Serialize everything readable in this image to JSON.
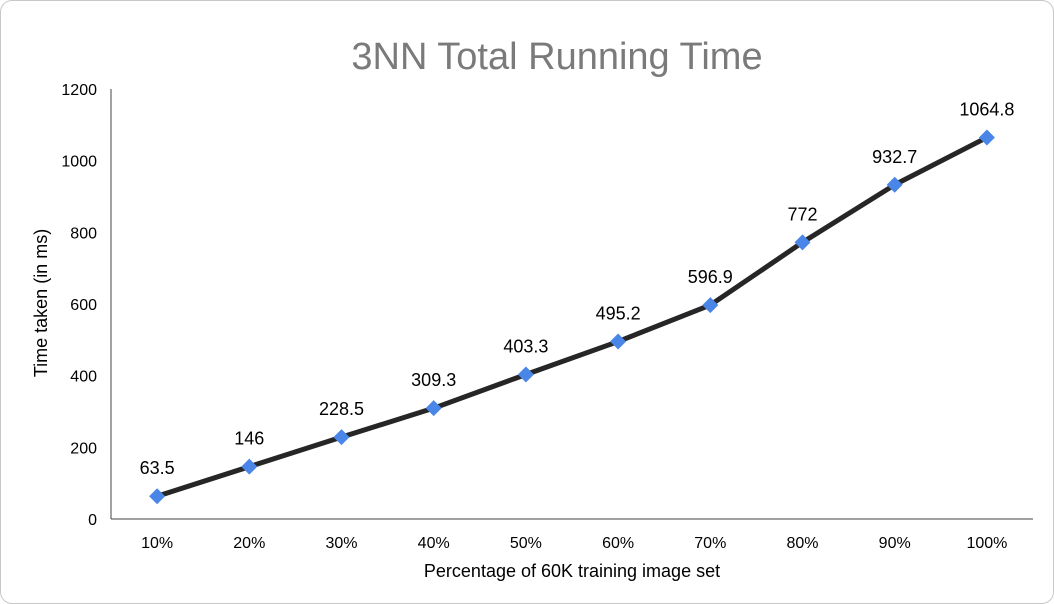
{
  "chart_data": {
    "type": "line",
    "title": "3NN Total Running Time",
    "xlabel": "Percentage of 60K training image set",
    "ylabel": "Time taken (in ms)",
    "categories": [
      "10%",
      "20%",
      "30%",
      "40%",
      "50%",
      "60%",
      "70%",
      "80%",
      "90%",
      "100%"
    ],
    "series": [
      {
        "values": [
          63.5,
          146,
          228.5,
          309.3,
          403.3,
          495.2,
          596.9,
          772,
          932.7,
          1064.8
        ],
        "labels": [
          "63.5",
          "146",
          "228.5",
          "309.3",
          "403.3",
          "495.2",
          "596.9",
          "772",
          "932.7",
          "1064.8"
        ],
        "line_color": "#262626",
        "marker_color": "#4a86e8",
        "marker": "diamond"
      }
    ],
    "ylim": [
      0,
      1200
    ],
    "yticks": [
      "0",
      "200",
      "400",
      "600",
      "800",
      "1000",
      "1200"
    ],
    "grid": false,
    "legend": "none"
  }
}
